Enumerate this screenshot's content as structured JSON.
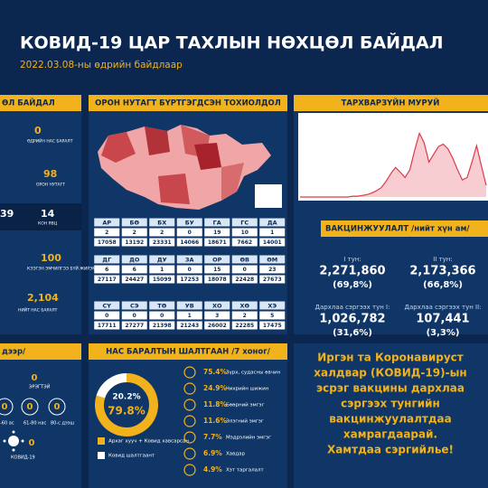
{
  "header": {
    "title": "КОВИД-19 ЦАР ТАХЛЫН НӨХЦӨЛ БАЙДАЛ",
    "subtitle": "2022.03.08-ны өдрийн байдлаар"
  },
  "left_panel": {
    "title": "ӨЛ БАЙДАЛ",
    "items": [
      {
        "value": "0",
        "label": "ӨДРИЙН НАС БАРАЛТ"
      },
      {
        "value": "98",
        "label": "ОРОН НУТАГТ"
      },
      {
        "value": "39"
      },
      {
        "value": "14",
        "label": "КОН ЯВЦ"
      },
      {
        "value": "100",
        "label": "КЭЭГЭН ЭМЧИЛГЭЭ БҮЙ ЖИРЭМСЭН"
      },
      {
        "value": "2,104",
        "label": "НИЙТ НАС БАРАЛТ"
      }
    ]
  },
  "regions": {
    "title": "ОРОН НУТАГТ БҮРТГЭГДСЭН ТОХИОЛДОЛ",
    "blocks": [
      {
        "codes": [
          "АР",
          "БӨ",
          "БХ",
          "БУ",
          "ГА",
          "ГС",
          "ДА"
        ],
        "today": [
          2,
          2,
          2,
          0,
          19,
          10,
          1
        ],
        "total": [
          17058,
          13192,
          23331,
          14066,
          18671,
          7662,
          14001
        ]
      },
      {
        "codes": [
          "ДГ",
          "ДО",
          "ДУ",
          "ЗА",
          "ОР",
          "ӨВ",
          "ӨМ"
        ],
        "today": [
          6,
          6,
          1,
          0,
          15,
          0,
          23
        ],
        "total": [
          27117,
          24427,
          15099,
          17253,
          18078,
          22428,
          27673
        ]
      },
      {
        "codes": [
          "СҮ",
          "СЭ",
          "ТӨ",
          "УВ",
          "ХО",
          "ХӨ",
          "ХЭ"
        ],
        "today": [
          0,
          0,
          0,
          1,
          3,
          2,
          5
        ],
        "total": [
          17711,
          27277,
          21398,
          21243,
          26002,
          22285,
          17475
        ]
      }
    ]
  },
  "epi_curve": {
    "title": "ТАРХВАРЗҮЙН МУРУЙ",
    "ylim": [
      0,
      100
    ],
    "color": "#e0374a",
    "values": [
      0,
      0,
      0,
      0,
      0,
      0,
      0,
      0,
      0,
      0,
      0,
      1,
      1,
      2,
      3,
      5,
      8,
      12,
      20,
      30,
      38,
      32,
      25,
      35,
      60,
      82,
      70,
      45,
      55,
      65,
      68,
      62,
      50,
      35,
      22,
      25,
      45,
      66,
      40,
      15
    ]
  },
  "vaccination": {
    "title": "ВАКЦИНЖУУЛАЛТ /нийт хүн ам/",
    "items": [
      {
        "label": "I тун:",
        "value": "2,271,860",
        "percent": "(69,8%)"
      },
      {
        "label": "II тун:",
        "value": "2,173,366",
        "percent": "(66,8%)"
      },
      {
        "label": "Дархлаа сэргээх тун I:",
        "value": "1,026,782",
        "percent": "(31,6%)"
      },
      {
        "label": "Дархлаа сэргээх тун II:",
        "value": "107,441",
        "percent": "(3,3%)"
      }
    ]
  },
  "age_panel": {
    "title": "дээр/",
    "items": [
      {
        "value": "0",
        "label": "ЭРЭГТЭЙ"
      },
      {
        "value": "0",
        "label": "-60 ас"
      },
      {
        "value": "0",
        "label": "61-80 нас"
      },
      {
        "value": "0",
        "label": "80-с дээш"
      },
      {
        "value": "0",
        "label": "КОВИД-19"
      }
    ]
  },
  "chart_data": {
    "type": "donut",
    "title": "НАС БАРАЛТЫН ШАЛТГААН /7 хоног/",
    "series": [
      {
        "name": "Архаг хууч + Ковид хавсарсан",
        "color": "#f2b21b",
        "value": 79.8,
        "value_label": "79.8%"
      },
      {
        "name": "Ковид шалтгаант",
        "color": "#ffffff",
        "value": 20.2,
        "value_label": "20.2%"
      }
    ],
    "causes": {
      "categories": [
        "Зүрх, судасны өвчин",
        "Чихрийн шижин",
        "Бөөрний эмгэг",
        "Элэгний эмгэг",
        "Мэдрэлийн эмгэг",
        "Хавдар",
        "Хэт таргалалт"
      ],
      "values": [
        75.4,
        24.9,
        11.8,
        11.6,
        7.7,
        6.9,
        4.9
      ],
      "value_labels": [
        "75.4%",
        "24.9%",
        "11.8%",
        "11.6%",
        "7.7%",
        "6.9%",
        "4.9%"
      ]
    }
  },
  "message": {
    "lines": [
      "Иргэн та Коронавируст",
      "халдвар (КОВИД-19)-ын",
      "эсрэг вакцины дархлаа",
      "сэргээх тунгийн",
      "вакцинжуулалтдаа",
      "хамрагдаарай.",
      "Хамтдаа сэргийлье!"
    ]
  }
}
